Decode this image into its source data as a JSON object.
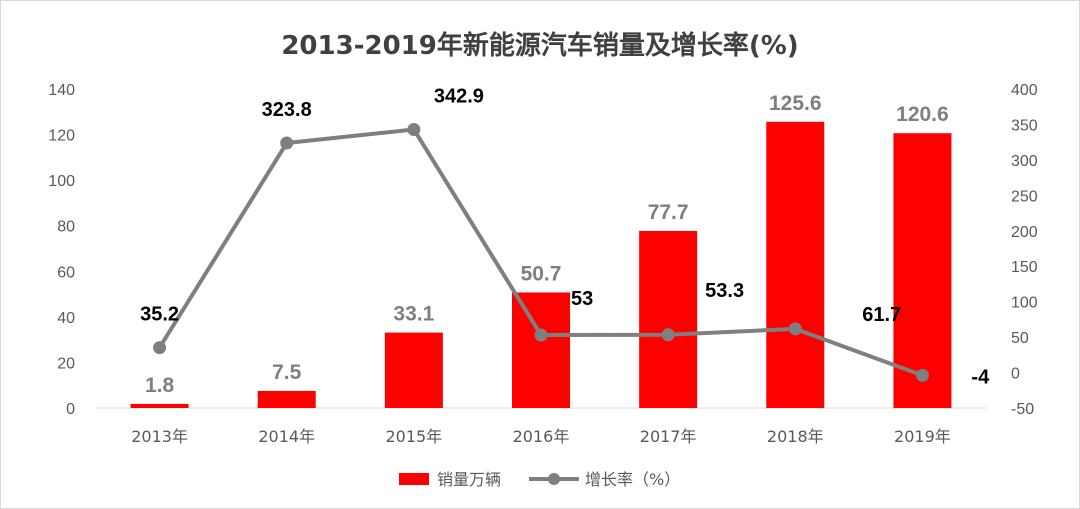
{
  "chart_data": {
    "type": "bar",
    "title": "2013-2019年新能源汽车销量及增长率(%)",
    "categories": [
      "2013年",
      "2014年",
      "2015年",
      "2016年",
      "2017年",
      "2018年",
      "2019年"
    ],
    "series": [
      {
        "name": "销量万辆",
        "type": "bar",
        "axis": "left",
        "values": [
          1.8,
          7.5,
          33.1,
          50.7,
          77.7,
          125.6,
          120.6
        ],
        "labels": [
          "1.8",
          "7.5",
          "33.1",
          "50.7",
          "77.7",
          "125.6",
          "120.6"
        ]
      },
      {
        "name": "增长率（%）",
        "type": "line",
        "axis": "right",
        "values": [
          35.2,
          323.8,
          342.9,
          53,
          53.3,
          61.7,
          -4
        ],
        "labels": [
          "35.2",
          "323.8",
          "342.9",
          "53",
          "53.3",
          "61.7",
          "-4"
        ]
      }
    ],
    "y_left": {
      "min": 0,
      "max": 140,
      "step": 20,
      "ticks": [
        "0",
        "20",
        "40",
        "60",
        "80",
        "100",
        "120",
        "140"
      ]
    },
    "y_right": {
      "min": -50,
      "max": 400,
      "step": 50,
      "ticks": [
        "-50",
        "0",
        "50",
        "100",
        "150",
        "200",
        "250",
        "300",
        "350",
        "400"
      ]
    },
    "grid": false,
    "legend": "bottom-center",
    "colors": {
      "bar": "#ff0000",
      "line": "#7f7f7f",
      "bar_label": "#7f7f7f",
      "rate_label": "#000000"
    }
  }
}
